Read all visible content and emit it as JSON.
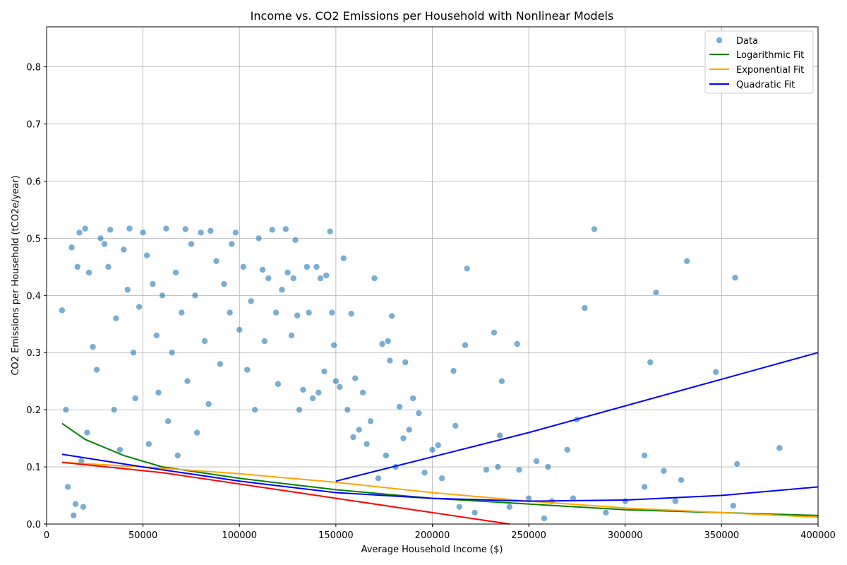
{
  "chart_data": {
    "type": "scatter",
    "title": "Income vs. CO2 Emissions per Household with Nonlinear Models",
    "xlabel": "Average Household Income ($)",
    "ylabel": "CO2 Emissions per Household (tCO2e/year)",
    "xlim": [
      0,
      400000
    ],
    "ylim": [
      0,
      0.87
    ],
    "x_ticks": [
      0,
      50000,
      100000,
      150000,
      200000,
      250000,
      300000,
      350000,
      400000
    ],
    "y_ticks": [
      0.0,
      0.1,
      0.2,
      0.3,
      0.4,
      0.5,
      0.6,
      0.7,
      0.8
    ],
    "x_tick_labels": [
      "0",
      "50000",
      "100000",
      "150000",
      "200000",
      "250000",
      "300000",
      "350000",
      "400000"
    ],
    "y_tick_labels": [
      "0.0",
      "0.1",
      "0.2",
      "0.3",
      "0.4",
      "0.5",
      "0.6",
      "0.7",
      "0.8"
    ],
    "grid": true,
    "legend_position": "top-right",
    "legend": [
      {
        "label": "Data",
        "kind": "marker",
        "color": "#1f77b4"
      },
      {
        "label": "Logarithmic Fit",
        "kind": "line",
        "color": "#008000"
      },
      {
        "label": "Exponential Fit",
        "kind": "line",
        "color": "#ffa500"
      },
      {
        "label": "Quadratic Fit",
        "kind": "line",
        "color": "#0000ff"
      }
    ],
    "series": [
      {
        "name": "Data",
        "kind": "scatter",
        "color": "#1f77b4",
        "points": [
          [
            8000,
            0.374
          ],
          [
            10000,
            0.2
          ],
          [
            11000,
            0.065
          ],
          [
            13000,
            0.484
          ],
          [
            14000,
            0.015
          ],
          [
            15000,
            0.035
          ],
          [
            16000,
            0.45
          ],
          [
            17000,
            0.51
          ],
          [
            18000,
            0.11
          ],
          [
            19000,
            0.03
          ],
          [
            20000,
            0.517
          ],
          [
            21000,
            0.16
          ],
          [
            22000,
            0.44
          ],
          [
            24000,
            0.31
          ],
          [
            26000,
            0.27
          ],
          [
            28000,
            0.5
          ],
          [
            30000,
            0.49
          ],
          [
            32000,
            0.45
          ],
          [
            33000,
            0.515
          ],
          [
            35000,
            0.2
          ],
          [
            36000,
            0.36
          ],
          [
            38000,
            0.13
          ],
          [
            40000,
            0.48
          ],
          [
            42000,
            0.41
          ],
          [
            43000,
            0.517
          ],
          [
            45000,
            0.3
          ],
          [
            46000,
            0.22
          ],
          [
            48000,
            0.38
          ],
          [
            50000,
            0.51
          ],
          [
            52000,
            0.47
          ],
          [
            53000,
            0.14
          ],
          [
            55000,
            0.42
          ],
          [
            57000,
            0.33
          ],
          [
            58000,
            0.23
          ],
          [
            60000,
            0.4
          ],
          [
            62000,
            0.517
          ],
          [
            63000,
            0.18
          ],
          [
            65000,
            0.3
          ],
          [
            67000,
            0.44
          ],
          [
            68000,
            0.12
          ],
          [
            70000,
            0.37
          ],
          [
            72000,
            0.516
          ],
          [
            73000,
            0.25
          ],
          [
            75000,
            0.49
          ],
          [
            77000,
            0.4
          ],
          [
            78000,
            0.16
          ],
          [
            80000,
            0.51
          ],
          [
            82000,
            0.32
          ],
          [
            84000,
            0.21
          ],
          [
            85000,
            0.513
          ],
          [
            88000,
            0.46
          ],
          [
            90000,
            0.28
          ],
          [
            92000,
            0.42
          ],
          [
            95000,
            0.37
          ],
          [
            96000,
            0.49
          ],
          [
            98000,
            0.51
          ],
          [
            100000,
            0.34
          ],
          [
            102000,
            0.45
          ],
          [
            104000,
            0.27
          ],
          [
            106000,
            0.39
          ],
          [
            108000,
            0.2
          ],
          [
            110000,
            0.5
          ],
          [
            112000,
            0.445
          ],
          [
            113000,
            0.32
          ],
          [
            115000,
            0.43
          ],
          [
            117000,
            0.515
          ],
          [
            119000,
            0.37
          ],
          [
            120000,
            0.245
          ],
          [
            122000,
            0.41
          ],
          [
            124000,
            0.516
          ],
          [
            125000,
            0.44
          ],
          [
            127000,
            0.33
          ],
          [
            128000,
            0.43
          ],
          [
            129000,
            0.497
          ],
          [
            130000,
            0.365
          ],
          [
            131000,
            0.2
          ],
          [
            133000,
            0.235
          ],
          [
            135000,
            0.45
          ],
          [
            136000,
            0.37
          ],
          [
            138000,
            0.22
          ],
          [
            140000,
            0.45
          ],
          [
            141000,
            0.23
          ],
          [
            142000,
            0.43
          ],
          [
            144000,
            0.267
          ],
          [
            145000,
            0.435
          ],
          [
            147000,
            0.512
          ],
          [
            148000,
            0.37
          ],
          [
            149000,
            0.313
          ],
          [
            150000,
            0.25
          ],
          [
            152000,
            0.24
          ],
          [
            154000,
            0.465
          ],
          [
            156000,
            0.2
          ],
          [
            158000,
            0.368
          ],
          [
            159000,
            0.152
          ],
          [
            160000,
            0.255
          ],
          [
            162000,
            0.165
          ],
          [
            164000,
            0.23
          ],
          [
            166000,
            0.14
          ],
          [
            168000,
            0.18
          ],
          [
            170000,
            0.43
          ],
          [
            172000,
            0.08
          ],
          [
            174000,
            0.315
          ],
          [
            176000,
            0.12
          ],
          [
            177000,
            0.32
          ],
          [
            178000,
            0.286
          ],
          [
            179000,
            0.364
          ],
          [
            181000,
            0.1
          ],
          [
            183000,
            0.205
          ],
          [
            185000,
            0.15
          ],
          [
            186000,
            0.283
          ],
          [
            188000,
            0.165
          ],
          [
            190000,
            0.22
          ],
          [
            193000,
            0.194
          ],
          [
            196000,
            0.09
          ],
          [
            200000,
            0.13
          ],
          [
            203000,
            0.138
          ],
          [
            205000,
            0.08
          ],
          [
            211000,
            0.268
          ],
          [
            212000,
            0.172
          ],
          [
            214000,
            0.03
          ],
          [
            217000,
            0.313
          ],
          [
            218000,
            0.447
          ],
          [
            222000,
            0.02
          ],
          [
            228000,
            0.095
          ],
          [
            232000,
            0.335
          ],
          [
            234000,
            0.1
          ],
          [
            235000,
            0.155
          ],
          [
            236000,
            0.25
          ],
          [
            240000,
            0.03
          ],
          [
            244000,
            0.315
          ],
          [
            245000,
            0.095
          ],
          [
            250000,
            0.045
          ],
          [
            254000,
            0.11
          ],
          [
            258000,
            0.01
          ],
          [
            260000,
            0.1
          ],
          [
            262000,
            0.04
          ],
          [
            270000,
            0.13
          ],
          [
            273000,
            0.045
          ],
          [
            275000,
            0.183
          ],
          [
            279000,
            0.378
          ],
          [
            284000,
            0.516
          ],
          [
            290000,
            0.02
          ],
          [
            300000,
            0.04
          ],
          [
            310000,
            0.12
          ],
          [
            313000,
            0.283
          ],
          [
            316000,
            0.405
          ],
          [
            320000,
            0.093
          ],
          [
            326000,
            0.04
          ],
          [
            329000,
            0.077
          ],
          [
            332000,
            0.46
          ],
          [
            347000,
            0.266
          ],
          [
            356000,
            0.032
          ],
          [
            357000,
            0.431
          ],
          [
            358000,
            0.105
          ],
          [
            380000,
            0.133
          ],
          [
            310000,
            0.065
          ]
        ]
      },
      {
        "name": "Logarithmic Fit",
        "kind": "line",
        "color": "#008000",
        "points": [
          [
            8000,
            0.176
          ],
          [
            20000,
            0.148
          ],
          [
            40000,
            0.12
          ],
          [
            60000,
            0.1
          ],
          [
            100000,
            0.08
          ],
          [
            150000,
            0.06
          ],
          [
            200000,
            0.045
          ],
          [
            300000,
            0.025
          ],
          [
            400000,
            0.015
          ]
        ]
      },
      {
        "name": "Exponential Fit",
        "kind": "line",
        "color": "#ffa500",
        "points": [
          [
            8000,
            0.108
          ],
          [
            50000,
            0.1
          ],
          [
            100000,
            0.088
          ],
          [
            150000,
            0.073
          ],
          [
            200000,
            0.055
          ],
          [
            250000,
            0.04
          ],
          [
            300000,
            0.028
          ],
          [
            400000,
            0.012
          ]
        ]
      },
      {
        "name": "Quadratic Fit",
        "kind": "line",
        "color": "#0000ff",
        "points": [
          [
            8000,
            0.122
          ],
          [
            50000,
            0.1
          ],
          [
            100000,
            0.075
          ],
          [
            150000,
            0.055
          ],
          [
            200000,
            0.045
          ],
          [
            250000,
            0.04
          ],
          [
            300000,
            0.042
          ],
          [
            350000,
            0.05
          ],
          [
            400000,
            0.065
          ]
        ]
      },
      {
        "name": "",
        "kind": "line",
        "color": "#ff0000",
        "points": [
          [
            8000,
            0.108
          ],
          [
            60000,
            0.09
          ],
          [
            120000,
            0.06
          ],
          [
            180000,
            0.03
          ],
          [
            240000,
            0.0
          ]
        ]
      },
      {
        "name": "",
        "kind": "line",
        "color": "#0000ff",
        "points": [
          [
            150000,
            0.075
          ],
          [
            250000,
            0.16
          ],
          [
            400000,
            0.3
          ]
        ]
      }
    ]
  }
}
